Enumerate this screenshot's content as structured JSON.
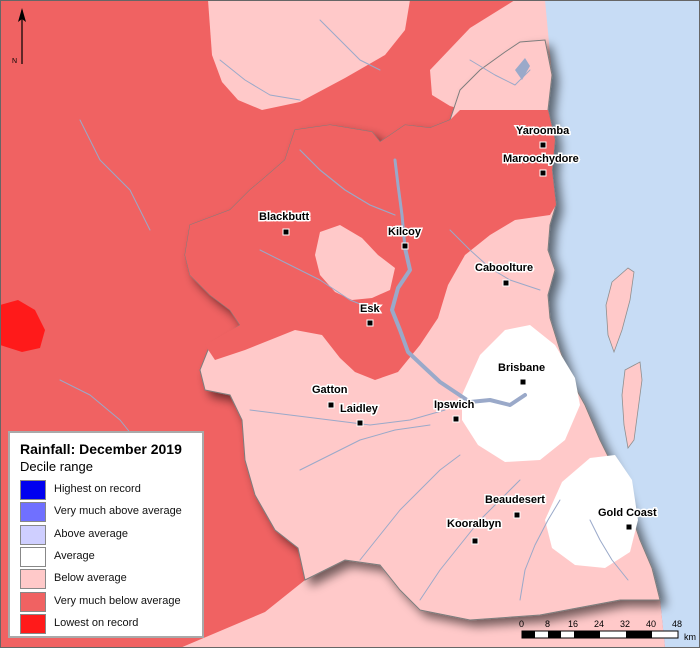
{
  "legend": {
    "title": "Rainfall: December 2019",
    "subtitle": "Decile range",
    "items": [
      {
        "label": "Highest on record",
        "color": "#0000f0"
      },
      {
        "label": "Very much above average",
        "color": "#7070ff"
      },
      {
        "label": "Above average",
        "color": "#cfcfff"
      },
      {
        "label": "Average",
        "color": "#ffffff"
      },
      {
        "label": "Below average",
        "color": "#ffc9c9"
      },
      {
        "label": "Very much below average",
        "color": "#f06262"
      },
      {
        "label": "Lowest on record",
        "color": "#ff1a1a"
      }
    ]
  },
  "colors": {
    "sea": "#c7dcf5",
    "below_average": "#ffc9c9",
    "very_much_below": "#f06262",
    "lowest": "#ff1a1a",
    "average": "#ffffff",
    "river": "#9aa9c9"
  },
  "towns": [
    {
      "name": "Yaroomba"
    },
    {
      "name": "Maroochydore"
    },
    {
      "name": "Blackbutt"
    },
    {
      "name": "Kilcoy"
    },
    {
      "name": "Caboolture"
    },
    {
      "name": "Esk"
    },
    {
      "name": "Brisbane"
    },
    {
      "name": "Gatton"
    },
    {
      "name": "Laidley"
    },
    {
      "name": "Ipswich"
    },
    {
      "name": "Beaudesert"
    },
    {
      "name": "Gold Coast"
    },
    {
      "name": "Kooralbyn"
    }
  ],
  "north_arrow": {
    "label": "N"
  },
  "scale_bar": {
    "ticks": [
      "0",
      "8",
      "16",
      "24",
      "32",
      "40",
      "48"
    ],
    "unit": "km"
  }
}
